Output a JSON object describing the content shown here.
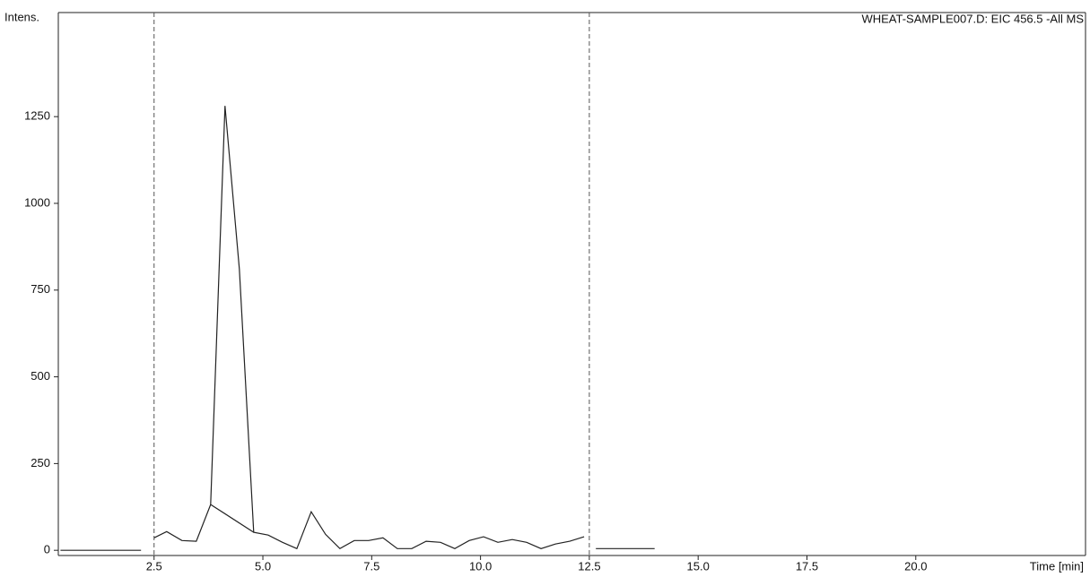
{
  "chart_data": {
    "type": "line",
    "title": "WHEAT-SAMPLE007.D: EIC 456.5 -All MS",
    "y_label": "Intens.",
    "x_label": "Time [min]",
    "xlim": [
      0.3,
      23.9
    ],
    "ylim": [
      -15,
      1550
    ],
    "xticks": [
      2.5,
      {
        "value": 5,
        "label": "5.0"
      },
      7.5,
      {
        "value": 10,
        "label": "10.0"
      },
      12.5,
      {
        "value": 15,
        "label": "15.0"
      },
      17.5,
      {
        "value": 20,
        "label": "20.0"
      }
    ],
    "yticks": [
      0,
      250,
      500,
      750,
      1000,
      1250
    ],
    "markers": [
      2.5,
      12.5
    ],
    "series": [
      {
        "color": "#222222",
        "x": [
          0.35,
          2.2,
          2.35,
          2.5,
          2.79,
          3.14,
          3.47,
          3.8,
          4.13,
          4.46,
          4.79,
          5.12,
          5.45,
          5.78,
          6.11,
          6.44,
          6.77,
          7.1,
          7.43,
          7.76,
          8.09,
          8.42,
          8.75,
          9.08,
          9.41,
          9.74,
          10.07,
          10.4,
          10.73,
          11.06,
          11.39,
          11.72,
          12.05,
          12.38,
          12.5,
          12.65,
          14.0
        ],
        "values": [
          0,
          0,
          null,
          36,
          54,
          28,
          26,
          132,
          1281,
          811,
          52,
          44,
          23,
          5,
          111,
          46,
          5,
          28,
          28,
          36,
          5,
          5,
          26,
          23,
          5,
          28,
          39,
          23,
          31,
          23,
          5,
          18,
          26,
          39,
          null,
          5,
          5
        ]
      },
      {
        "color": "#222222",
        "x": [
          3.8,
          4.79
        ],
        "values": [
          132,
          52
        ]
      }
    ]
  }
}
